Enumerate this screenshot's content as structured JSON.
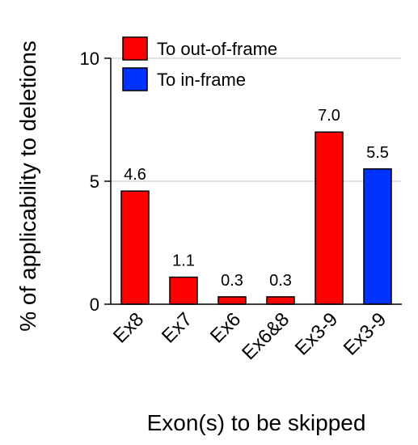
{
  "chart_data": {
    "type": "bar",
    "title": "",
    "xlabel": "Exon(s) to be skipped",
    "ylabel": "% of applicability to deletions",
    "ylim": [
      0,
      10
    ],
    "yticks": [
      0,
      5,
      10
    ],
    "grid": true,
    "legend_position": "top-left",
    "legend": [
      {
        "name": "To out-of-frame",
        "color": "#ff0000"
      },
      {
        "name": "To in-frame",
        "color": "#0033ff"
      }
    ],
    "categories": [
      "Ex8",
      "Ex7",
      "Ex6",
      "Ex6&8",
      "Ex3-9",
      "Ex3-9"
    ],
    "values": [
      4.6,
      1.1,
      0.3,
      0.3,
      7.0,
      5.5
    ],
    "value_labels": [
      "4.6",
      "1.1",
      "0.3",
      "0.3",
      "7.0",
      "5.5"
    ],
    "bar_series": [
      0,
      0,
      0,
      0,
      0,
      1
    ]
  }
}
